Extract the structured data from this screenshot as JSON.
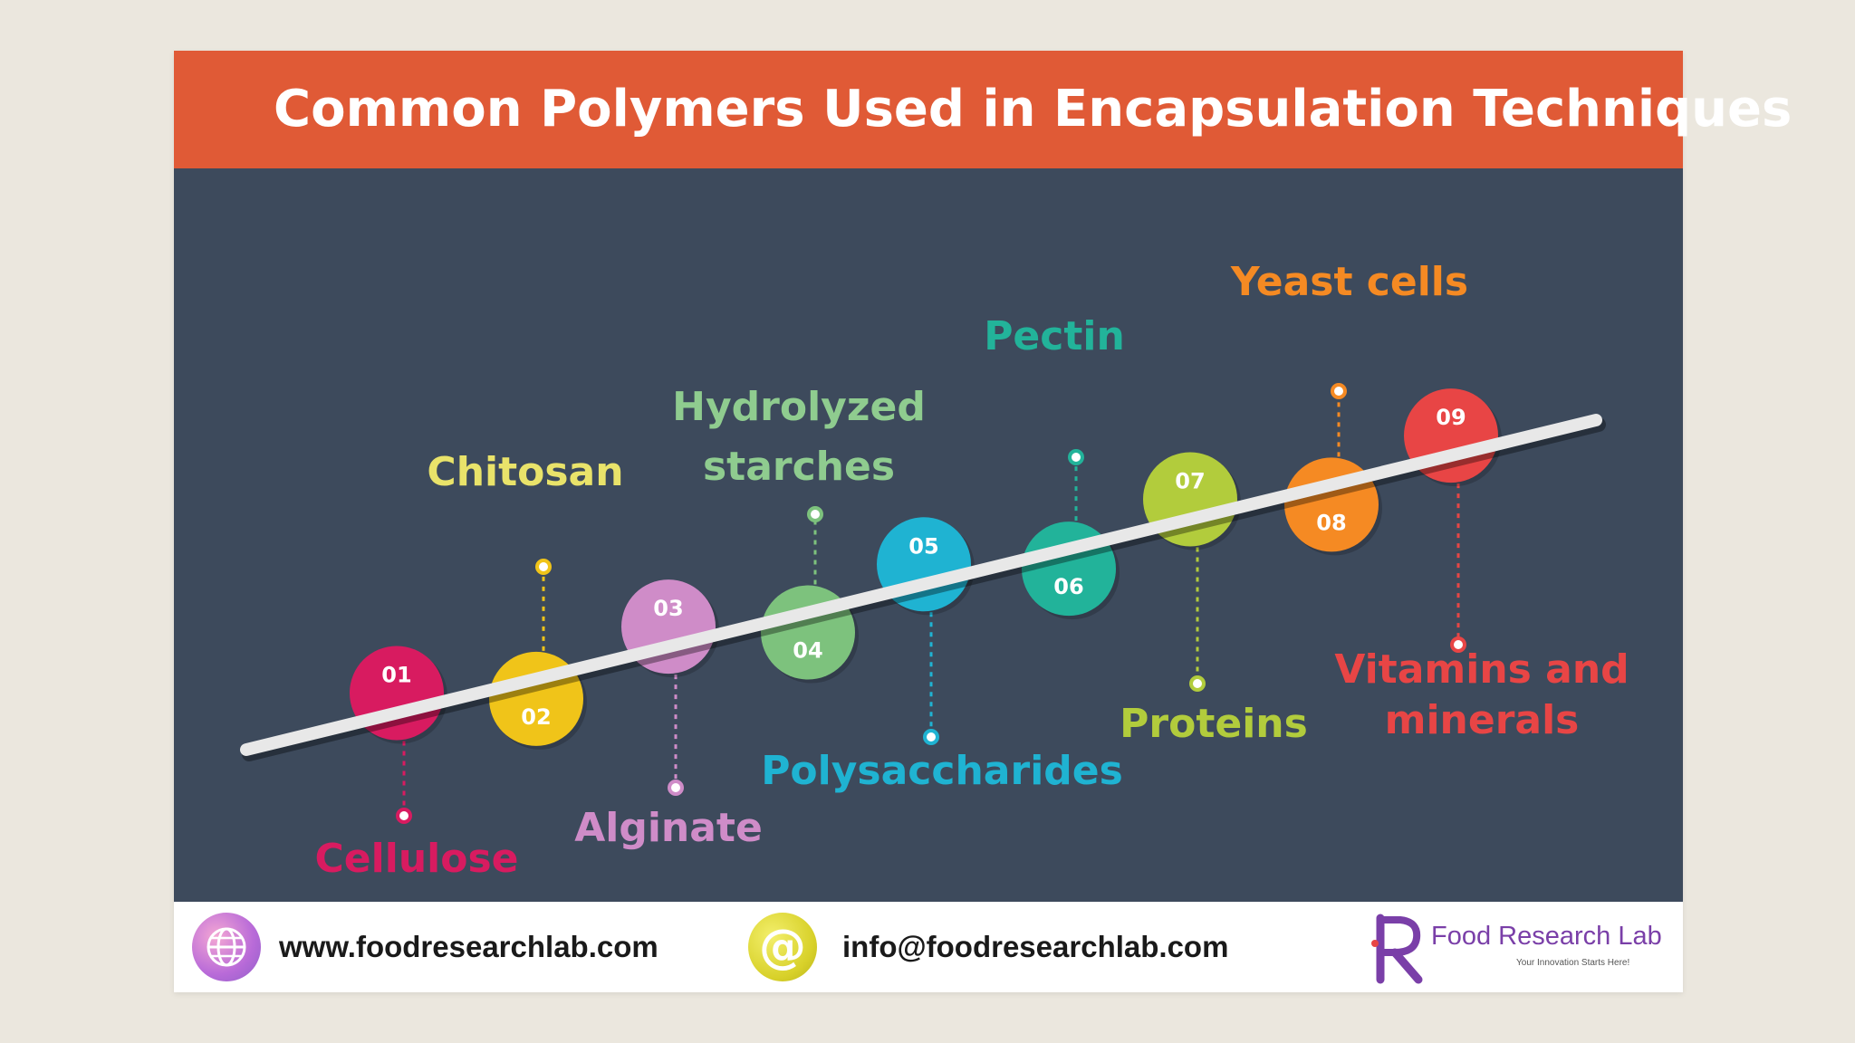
{
  "title": "Common Polymers Used in Encapsulation Techniques",
  "colors": {
    "header": "#e05a36",
    "panel": "#3d4a5c",
    "line": "#e8e8e8"
  },
  "items": [
    {
      "number": "01",
      "lines": [
        "Cellulose"
      ],
      "color": "#d81b60",
      "node_side": "above",
      "label_side": "below"
    },
    {
      "number": "02",
      "lines": [
        "Chitosan"
      ],
      "color": "#f0c419",
      "label_color": "#e9e36a",
      "node_side": "below",
      "label_side": "above"
    },
    {
      "number": "03",
      "lines": [
        "Alginate"
      ],
      "color": "#cf8cc8",
      "node_side": "above",
      "label_side": "below"
    },
    {
      "number": "04",
      "lines": [
        "Hydrolyzed",
        "starches"
      ],
      "color": "#7dc27d",
      "label_color": "#8fcc8f",
      "node_side": "below",
      "label_side": "above"
    },
    {
      "number": "05",
      "lines": [
        "Polysaccharides"
      ],
      "color": "#1fb3d2",
      "node_side": "above",
      "label_side": "below"
    },
    {
      "number": "06",
      "lines": [
        "Pectin"
      ],
      "color": "#22b39a",
      "node_side": "below",
      "label_side": "above"
    },
    {
      "number": "07",
      "lines": [
        "Proteins"
      ],
      "color": "#b2cc3c",
      "node_side": "above",
      "label_side": "below"
    },
    {
      "number": "08",
      "lines": [
        "Yeast cells"
      ],
      "color": "#f58a23",
      "node_side": "below",
      "label_side": "above"
    },
    {
      "number": "09",
      "lines": [
        "Vitamins and",
        "minerals"
      ],
      "color": "#e84545",
      "node_side": "above",
      "label_side": "below"
    }
  ],
  "footer": {
    "website": "www.foodresearchlab.com",
    "email": "info@foodresearchlab.com",
    "at_symbol": "@",
    "brand": "Food Research Lab",
    "tagline": "Your Innovation Starts Here!",
    "icons": [
      "globe-icon",
      "at-icon",
      "food-research-lab-logo"
    ]
  }
}
